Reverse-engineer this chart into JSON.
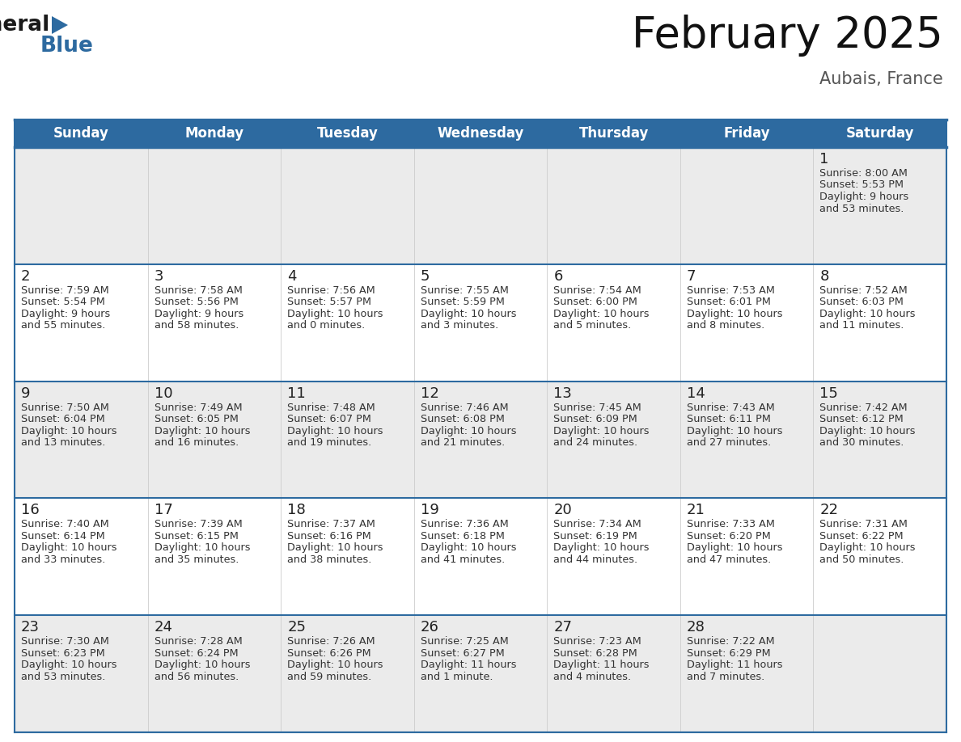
{
  "title": "February 2025",
  "subtitle": "Aubais, France",
  "header_bg": "#2D6AA0",
  "header_text_color": "#FFFFFF",
  "row_bg_odd": "#EBEBEB",
  "row_bg_even": "#FFFFFF",
  "border_color": "#2D6AA0",
  "day_headers": [
    "Sunday",
    "Monday",
    "Tuesday",
    "Wednesday",
    "Thursday",
    "Friday",
    "Saturday"
  ],
  "days_data": [
    {
      "day": 1,
      "col": 6,
      "row": 0,
      "sunrise": "8:00 AM",
      "sunset": "5:53 PM",
      "daylight": "9 hours\nand 53 minutes."
    },
    {
      "day": 2,
      "col": 0,
      "row": 1,
      "sunrise": "7:59 AM",
      "sunset": "5:54 PM",
      "daylight": "9 hours\nand 55 minutes."
    },
    {
      "day": 3,
      "col": 1,
      "row": 1,
      "sunrise": "7:58 AM",
      "sunset": "5:56 PM",
      "daylight": "9 hours\nand 58 minutes."
    },
    {
      "day": 4,
      "col": 2,
      "row": 1,
      "sunrise": "7:56 AM",
      "sunset": "5:57 PM",
      "daylight": "10 hours\nand 0 minutes."
    },
    {
      "day": 5,
      "col": 3,
      "row": 1,
      "sunrise": "7:55 AM",
      "sunset": "5:59 PM",
      "daylight": "10 hours\nand 3 minutes."
    },
    {
      "day": 6,
      "col": 4,
      "row": 1,
      "sunrise": "7:54 AM",
      "sunset": "6:00 PM",
      "daylight": "10 hours\nand 5 minutes."
    },
    {
      "day": 7,
      "col": 5,
      "row": 1,
      "sunrise": "7:53 AM",
      "sunset": "6:01 PM",
      "daylight": "10 hours\nand 8 minutes."
    },
    {
      "day": 8,
      "col": 6,
      "row": 1,
      "sunrise": "7:52 AM",
      "sunset": "6:03 PM",
      "daylight": "10 hours\nand 11 minutes."
    },
    {
      "day": 9,
      "col": 0,
      "row": 2,
      "sunrise": "7:50 AM",
      "sunset": "6:04 PM",
      "daylight": "10 hours\nand 13 minutes."
    },
    {
      "day": 10,
      "col": 1,
      "row": 2,
      "sunrise": "7:49 AM",
      "sunset": "6:05 PM",
      "daylight": "10 hours\nand 16 minutes."
    },
    {
      "day": 11,
      "col": 2,
      "row": 2,
      "sunrise": "7:48 AM",
      "sunset": "6:07 PM",
      "daylight": "10 hours\nand 19 minutes."
    },
    {
      "day": 12,
      "col": 3,
      "row": 2,
      "sunrise": "7:46 AM",
      "sunset": "6:08 PM",
      "daylight": "10 hours\nand 21 minutes."
    },
    {
      "day": 13,
      "col": 4,
      "row": 2,
      "sunrise": "7:45 AM",
      "sunset": "6:09 PM",
      "daylight": "10 hours\nand 24 minutes."
    },
    {
      "day": 14,
      "col": 5,
      "row": 2,
      "sunrise": "7:43 AM",
      "sunset": "6:11 PM",
      "daylight": "10 hours\nand 27 minutes."
    },
    {
      "day": 15,
      "col": 6,
      "row": 2,
      "sunrise": "7:42 AM",
      "sunset": "6:12 PM",
      "daylight": "10 hours\nand 30 minutes."
    },
    {
      "day": 16,
      "col": 0,
      "row": 3,
      "sunrise": "7:40 AM",
      "sunset": "6:14 PM",
      "daylight": "10 hours\nand 33 minutes."
    },
    {
      "day": 17,
      "col": 1,
      "row": 3,
      "sunrise": "7:39 AM",
      "sunset": "6:15 PM",
      "daylight": "10 hours\nand 35 minutes."
    },
    {
      "day": 18,
      "col": 2,
      "row": 3,
      "sunrise": "7:37 AM",
      "sunset": "6:16 PM",
      "daylight": "10 hours\nand 38 minutes."
    },
    {
      "day": 19,
      "col": 3,
      "row": 3,
      "sunrise": "7:36 AM",
      "sunset": "6:18 PM",
      "daylight": "10 hours\nand 41 minutes."
    },
    {
      "day": 20,
      "col": 4,
      "row": 3,
      "sunrise": "7:34 AM",
      "sunset": "6:19 PM",
      "daylight": "10 hours\nand 44 minutes."
    },
    {
      "day": 21,
      "col": 5,
      "row": 3,
      "sunrise": "7:33 AM",
      "sunset": "6:20 PM",
      "daylight": "10 hours\nand 47 minutes."
    },
    {
      "day": 22,
      "col": 6,
      "row": 3,
      "sunrise": "7:31 AM",
      "sunset": "6:22 PM",
      "daylight": "10 hours\nand 50 minutes."
    },
    {
      "day": 23,
      "col": 0,
      "row": 4,
      "sunrise": "7:30 AM",
      "sunset": "6:23 PM",
      "daylight": "10 hours\nand 53 minutes."
    },
    {
      "day": 24,
      "col": 1,
      "row": 4,
      "sunrise": "7:28 AM",
      "sunset": "6:24 PM",
      "daylight": "10 hours\nand 56 minutes."
    },
    {
      "day": 25,
      "col": 2,
      "row": 4,
      "sunrise": "7:26 AM",
      "sunset": "6:26 PM",
      "daylight": "10 hours\nand 59 minutes."
    },
    {
      "day": 26,
      "col": 3,
      "row": 4,
      "sunrise": "7:25 AM",
      "sunset": "6:27 PM",
      "daylight": "11 hours\nand 1 minute."
    },
    {
      "day": 27,
      "col": 4,
      "row": 4,
      "sunrise": "7:23 AM",
      "sunset": "6:28 PM",
      "daylight": "11 hours\nand 4 minutes."
    },
    {
      "day": 28,
      "col": 5,
      "row": 4,
      "sunrise": "7:22 AM",
      "sunset": "6:29 PM",
      "daylight": "11 hours\nand 7 minutes."
    }
  ],
  "num_rows": 5,
  "num_cols": 7
}
